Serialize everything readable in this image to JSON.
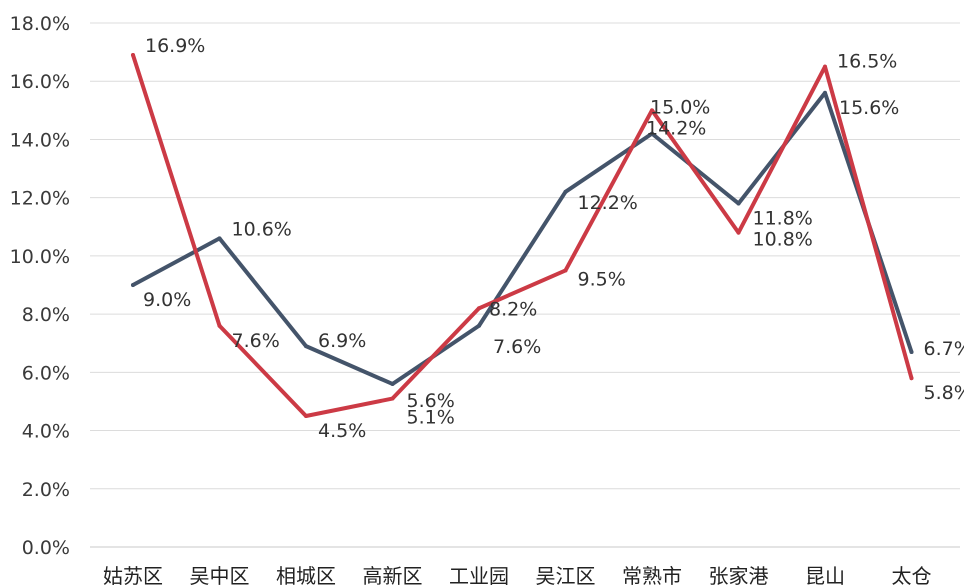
{
  "chart_data": {
    "type": "line",
    "title": "",
    "xlabel": "",
    "ylabel": "",
    "categories": [
      "姑苏区",
      "吴中区",
      "相城区",
      "高新区",
      "工业园",
      "吴江区",
      "常熟市",
      "张家港",
      "昆山",
      "太仓"
    ],
    "y_ticks": [
      "0.0%",
      "2.0%",
      "4.0%",
      "6.0%",
      "8.0%",
      "10.0%",
      "12.0%",
      "14.0%",
      "16.0%",
      "18.0%"
    ],
    "ylim": [
      0,
      18
    ],
    "grid": true,
    "legend": "none",
    "series": [
      {
        "color": "#44546a",
        "values": [
          9.0,
          10.6,
          6.9,
          5.6,
          7.6,
          12.2,
          14.2,
          11.8,
          15.6,
          6.7
        ],
        "labels": [
          "9.0%",
          "10.6%",
          "6.9%",
          "5.6%",
          "7.6%",
          "12.2%",
          "14.2%",
          "11.8%",
          "15.6%",
          "6.7%"
        ]
      },
      {
        "color": "#cc3a45",
        "values": [
          16.9,
          7.6,
          4.5,
          5.1,
          8.2,
          9.5,
          15.0,
          10.8,
          16.5,
          5.8
        ],
        "labels": [
          "16.9%",
          "7.6%",
          "4.5%",
          "5.1%",
          "8.2%",
          "9.5%",
          "15.0%",
          "10.8%",
          "16.5%",
          "5.8%"
        ]
      }
    ]
  }
}
